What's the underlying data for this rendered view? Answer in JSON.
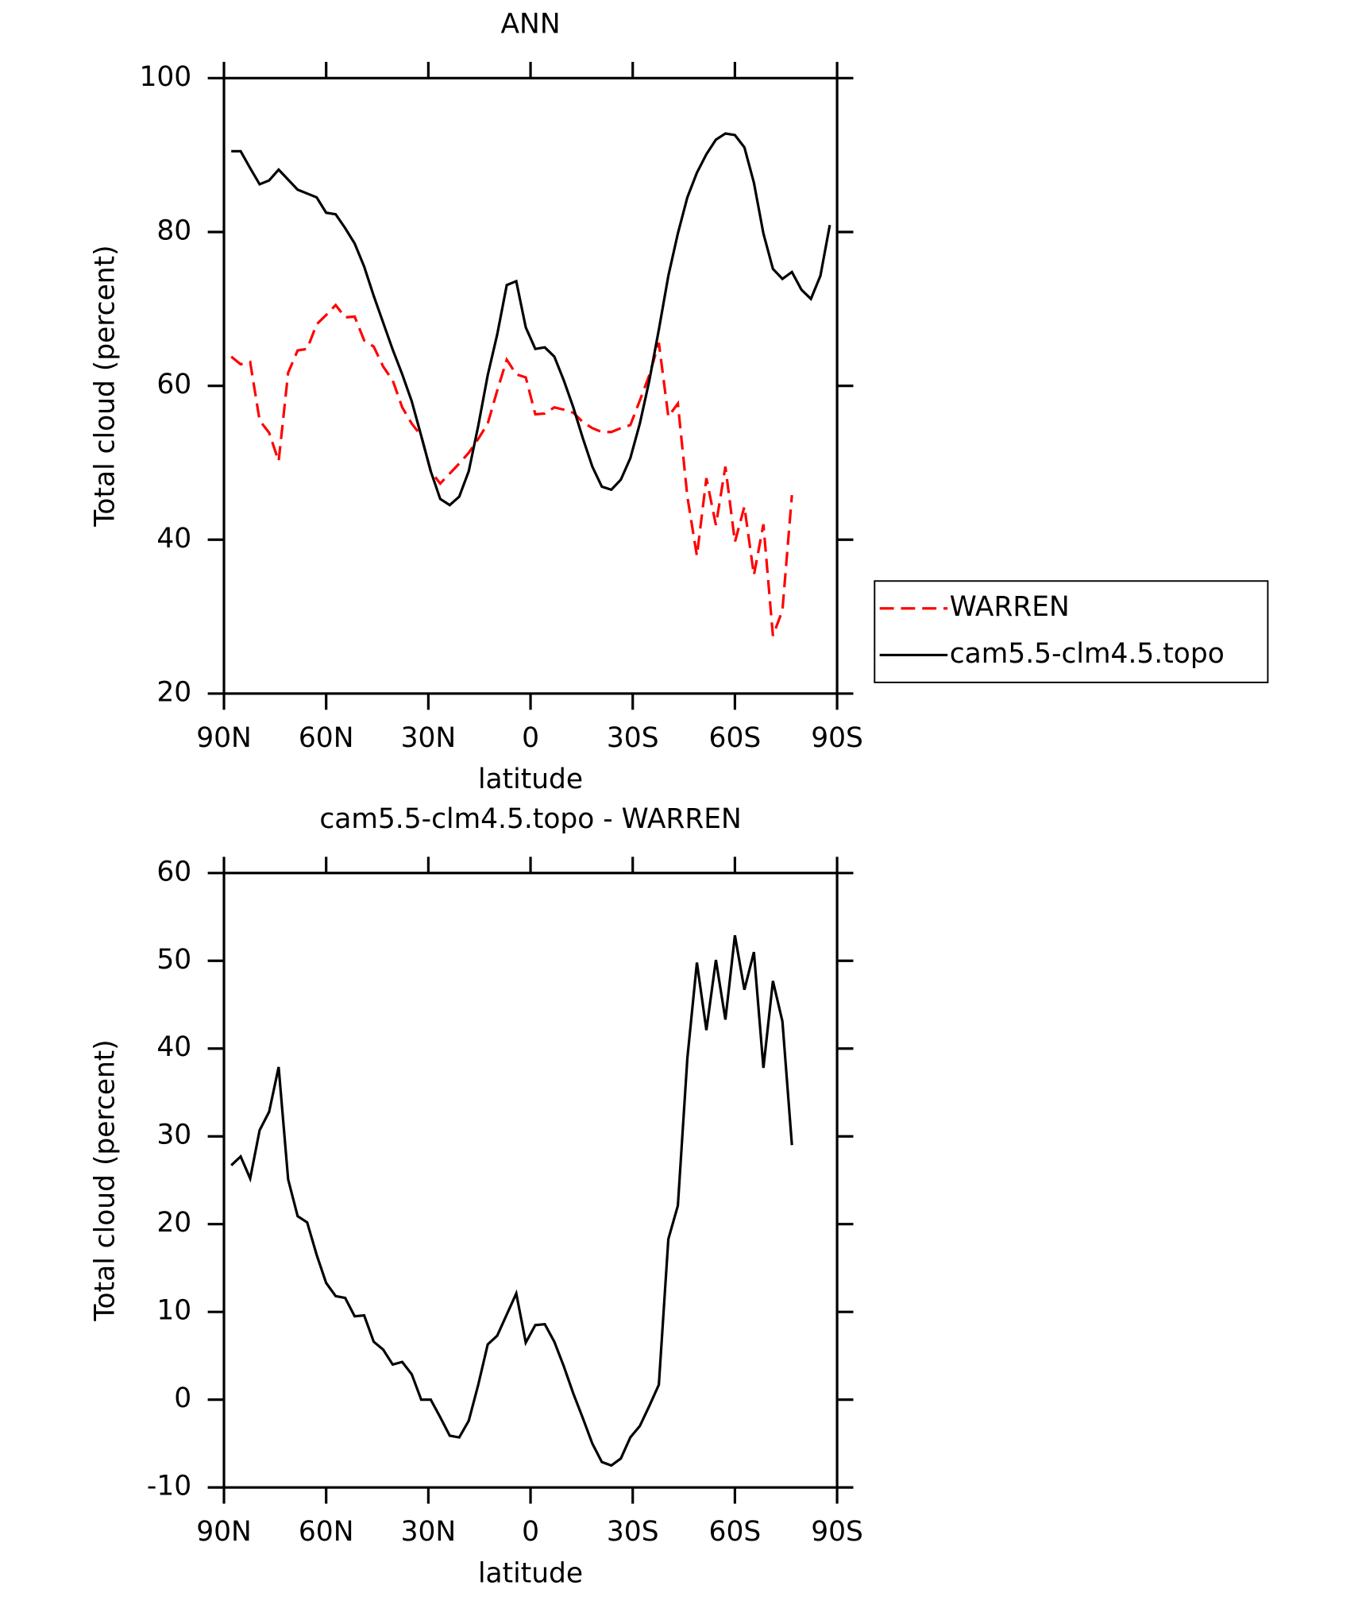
{
  "chart_data": [
    {
      "type": "line",
      "title": "ANN",
      "xlabel": "latitude",
      "ylabel": "Total cloud (percent)",
      "x": [
        87.86,
        85.1,
        82.31,
        79.53,
        76.74,
        73.95,
        71.16,
        68.37,
        65.58,
        62.79,
        60.0,
        57.21,
        54.42,
        51.63,
        48.84,
        46.04,
        43.25,
        40.46,
        37.67,
        34.88,
        32.09,
        29.3,
        26.51,
        23.72,
        20.93,
        18.14,
        15.35,
        12.56,
        9.77,
        6.98,
        4.19,
        1.4,
        -1.4,
        -4.19,
        -6.98,
        -9.77,
        -12.56,
        -15.35,
        -18.14,
        -20.93,
        -23.72,
        -26.51,
        -29.3,
        -32.09,
        -34.88,
        -37.67,
        -40.46,
        -43.25,
        -46.04,
        -48.84,
        -51.63,
        -54.42,
        -57.21,
        -60.0,
        -62.79,
        -65.58,
        -68.37,
        -71.16,
        -73.95,
        -76.74,
        -79.53,
        -82.31,
        -85.1,
        -87.86
      ],
      "series": [
        {
          "name": "WARREN",
          "color": "#ff0000",
          "dashed": true,
          "values": [
            63.8,
            62.8,
            63.1,
            55.5,
            53.9,
            50.2,
            61.7,
            64.6,
            64.8,
            68.0,
            69.2,
            70.5,
            68.9,
            69.0,
            65.9,
            65.1,
            62.5,
            60.7,
            57.2,
            55.1,
            53.5,
            48.9,
            47.3,
            48.6,
            49.9,
            51.3,
            53.1,
            55.1,
            59.4,
            63.4,
            61.5,
            61.1,
            56.3,
            56.4,
            57.2,
            56.9,
            56.5,
            55.3,
            54.5,
            54.0,
            54.0,
            54.5,
            54.9,
            58.1,
            61.4,
            65.6,
            56.0,
            57.7,
            45.6,
            37.9,
            48.0,
            41.9,
            49.5,
            39.7,
            44.3,
            35.4,
            42.0,
            27.5,
            30.8,
            45.8,
            null,
            null,
            null,
            null
          ]
        },
        {
          "name": "cam5.5-clm4.5.topo",
          "color": "#000000",
          "dashed": false,
          "values": [
            90.5,
            90.5,
            88.3,
            86.2,
            86.7,
            88.1,
            86.8,
            85.5,
            85.0,
            84.5,
            82.5,
            82.3,
            80.5,
            78.5,
            75.5,
            71.7,
            68.2,
            64.7,
            61.5,
            58.0,
            53.5,
            48.9,
            45.3,
            44.5,
            45.6,
            48.9,
            54.8,
            61.4,
            66.7,
            73.1,
            73.6,
            67.6,
            64.8,
            65.0,
            63.8,
            60.7,
            57.2,
            53.2,
            49.5,
            46.9,
            46.5,
            47.8,
            50.6,
            55.1,
            60.7,
            67.3,
            74.3,
            79.8,
            84.5,
            87.7,
            90.1,
            92.0,
            92.8,
            92.6,
            91.0,
            86.4,
            79.8,
            75.2,
            73.9,
            74.8,
            72.5,
            71.3,
            74.3,
            80.9
          ]
        }
      ],
      "xlim": [
        90,
        -90
      ],
      "xticks": [
        {
          "value": 90,
          "label": "90N"
        },
        {
          "value": 60,
          "label": "60N"
        },
        {
          "value": 30,
          "label": "30N"
        },
        0,
        {
          "value": -30,
          "label": "30S"
        },
        {
          "value": -60,
          "label": "60S"
        },
        {
          "value": -90,
          "label": "90S"
        }
      ],
      "ylim": [
        20,
        100
      ],
      "yticks": [
        20,
        40,
        60,
        80,
        100
      ],
      "legend": "outside-right"
    },
    {
      "type": "line",
      "title": "cam5.5-clm4.5.topo - WARREN",
      "xlabel": "latitude",
      "ylabel": "Total cloud (percent)",
      "x": [
        87.86,
        85.1,
        82.31,
        79.53,
        76.74,
        73.95,
        71.16,
        68.37,
        65.58,
        62.79,
        60.0,
        57.21,
        54.42,
        51.63,
        48.84,
        46.04,
        43.25,
        40.46,
        37.67,
        34.88,
        32.09,
        29.3,
        26.51,
        23.72,
        20.93,
        18.14,
        15.35,
        12.56,
        9.77,
        6.98,
        4.19,
        1.4,
        -1.4,
        -4.19,
        -6.98,
        -9.77,
        -12.56,
        -15.35,
        -18.14,
        -20.93,
        -23.72,
        -26.51,
        -29.3,
        -32.09,
        -34.88,
        -37.67,
        -40.46,
        -43.25,
        -46.04,
        -48.84,
        -51.63,
        -54.42,
        -57.21,
        -60.0,
        -62.79,
        -65.58,
        -68.37,
        -71.16,
        -73.95,
        -76.74,
        -79.53,
        -82.31,
        -85.1,
        -87.86
      ],
      "color": "#000000",
      "values": [
        26.7,
        27.7,
        25.2,
        30.7,
        32.8,
        37.9,
        25.1,
        20.9,
        20.2,
        16.5,
        13.3,
        11.8,
        11.6,
        9.5,
        9.6,
        6.6,
        5.7,
        4.0,
        4.3,
        2.9,
        0,
        0,
        -2.0,
        -4.1,
        -4.3,
        -2.4,
        1.7,
        6.3,
        7.3,
        9.7,
        12.1,
        6.5,
        8.5,
        8.6,
        6.6,
        3.8,
        0.7,
        -2.1,
        -5.0,
        -7.1,
        -7.5,
        -6.7,
        -4.3,
        -3.0,
        -0.7,
        1.7,
        18.3,
        22.1,
        38.9,
        49.8,
        42.1,
        50.1,
        43.3,
        52.9,
        46.7,
        51.0,
        37.8,
        47.7,
        43.1,
        29.0,
        null,
        null,
        null,
        null
      ],
      "xlim": [
        90,
        -90
      ],
      "xticks": [
        {
          "value": 90,
          "label": "90N"
        },
        {
          "value": 60,
          "label": "60N"
        },
        {
          "value": 30,
          "label": "30N"
        },
        0,
        {
          "value": -30,
          "label": "30S"
        },
        {
          "value": -60,
          "label": "60S"
        },
        {
          "value": -90,
          "label": "90S"
        }
      ],
      "ylim": [
        -10,
        60
      ],
      "yticks": [
        -10,
        0,
        10,
        20,
        30,
        40,
        50,
        60
      ]
    }
  ]
}
